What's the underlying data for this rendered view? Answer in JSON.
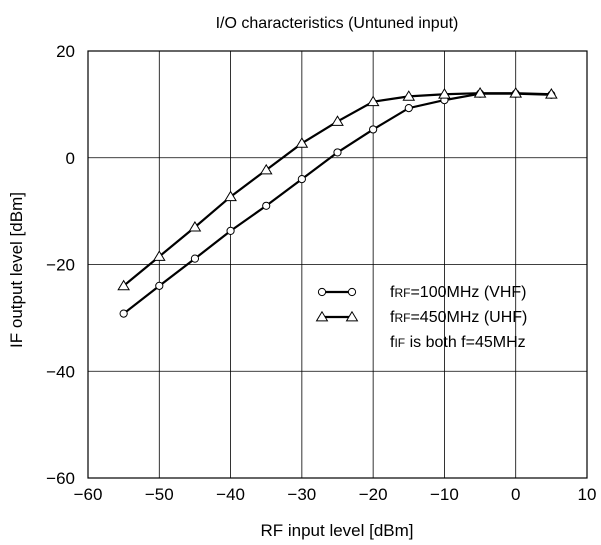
{
  "chart_data": {
    "type": "line",
    "title": "I/O characteristics (Untuned input)",
    "xlabel": "RF input level [dBm]",
    "ylabel": "IF output level [dBm]",
    "xlim": [
      -60,
      10
    ],
    "ylim": [
      -60,
      20
    ],
    "x_ticks": [
      -60,
      -50,
      -40,
      -30,
      -20,
      -10,
      0,
      10
    ],
    "y_ticks": [
      -60,
      -40,
      -20,
      0,
      20
    ],
    "x_tick_labels": [
      "−60",
      "−50",
      "−40",
      "−30",
      "−20",
      "−10",
      "0",
      "10"
    ],
    "y_tick_labels": [
      "−60",
      "−40",
      "−20",
      "0",
      "20"
    ],
    "grid": true,
    "legend_position": "right-middle",
    "series": [
      {
        "name_prefix": "f",
        "name_sub": "RF",
        "name_suffix": "=100MHz (VHF)",
        "marker": "circle",
        "x": [
          -55,
          -50,
          -45,
          -40,
          -35,
          -30,
          -25,
          -20,
          -15,
          -10,
          -5,
          0,
          5
        ],
        "y": [
          -29.2,
          -24,
          -18.9,
          -13.7,
          -9,
          -4,
          1,
          5.3,
          9.3,
          10.8,
          12,
          12,
          11.8
        ]
      },
      {
        "name_prefix": "f",
        "name_sub": "RF",
        "name_suffix": "=450MHz (UHF)",
        "marker": "triangle",
        "x": [
          -55,
          -50,
          -45,
          -40,
          -35,
          -30,
          -25,
          -20,
          -15,
          -10,
          -5,
          0,
          5
        ],
        "y": [
          -24,
          -18.5,
          -13,
          -7.3,
          -2.3,
          2.7,
          6.8,
          10.5,
          11.5,
          11.9,
          12.1,
          12.1,
          11.9
        ]
      }
    ],
    "legend_note": {
      "prefix": "f",
      "sub": "IF",
      "suffix": " is both f=45MHz"
    }
  }
}
